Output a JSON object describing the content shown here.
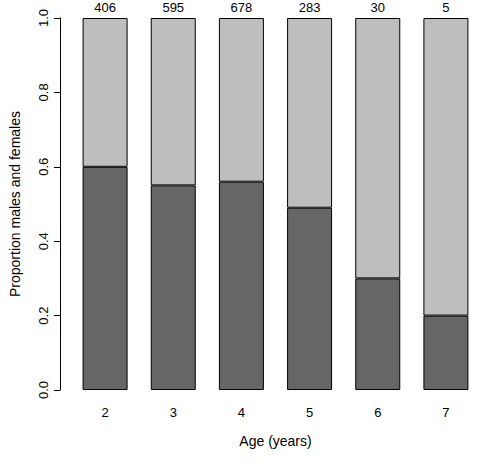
{
  "chart_data": {
    "type": "bar",
    "stacked": true,
    "x_label": "Age (years)",
    "y_label": "Proportion males and females",
    "categories": [
      "2",
      "3",
      "4",
      "5",
      "6",
      "7"
    ],
    "series": [
      {
        "color": "#666666",
        "values": [
          0.6,
          0.55,
          0.56,
          0.49,
          0.3,
          0.2
        ]
      },
      {
        "color": "#bebebe",
        "values": [
          0.4,
          0.45,
          0.44,
          0.51,
          0.7,
          0.8
        ]
      }
    ],
    "sample_sizes": [
      406,
      595,
      678,
      283,
      30,
      5
    ],
    "ylim": [
      0,
      1
    ],
    "yticks": [
      {
        "value": 0,
        "label": "0.0"
      },
      0.2,
      0.4,
      0.6,
      0.8,
      {
        "value": 1,
        "label": "1.0"
      }
    ],
    "grid": false
  }
}
